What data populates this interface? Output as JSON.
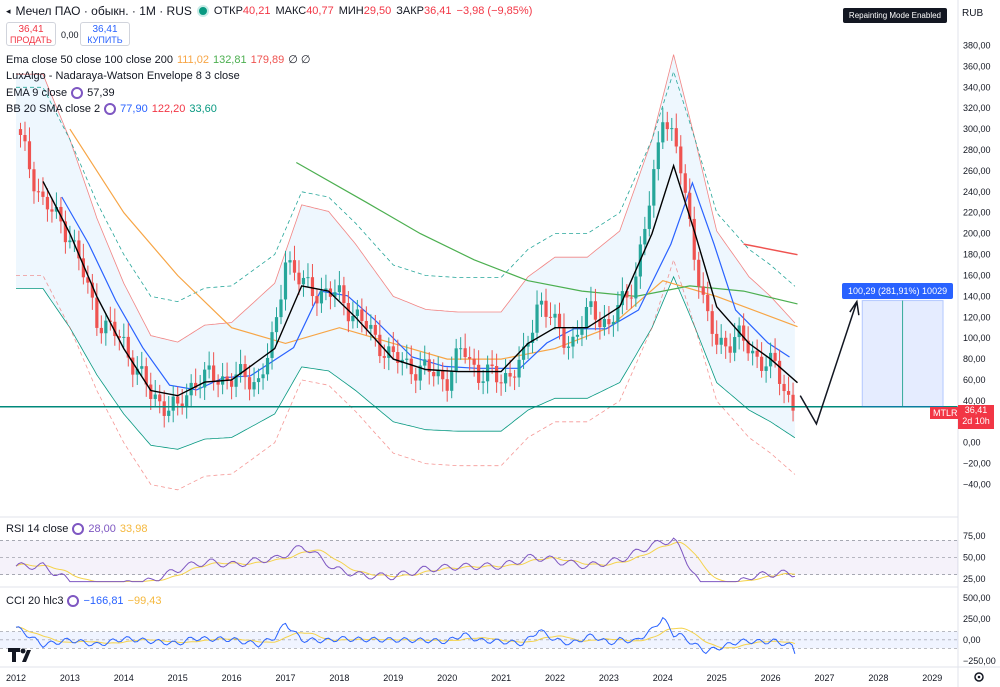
{
  "header": {
    "symbol": "Мечел ПАО · обыкн. · 1М · RUS",
    "open_label": "ОТКР",
    "open": "40,21",
    "high_label": "МАКС",
    "high": "40,77",
    "low_label": "МИН",
    "low": "29,50",
    "close_label": "ЗАКР",
    "close": "36,41",
    "change": "−3,98 (−9,85%)"
  },
  "trade": {
    "sell_price": "36,41",
    "sell_label": "ПРОДАТЬ",
    "spread": "0,00",
    "buy_price": "36,41",
    "buy_label": "КУПИТЬ"
  },
  "legends": {
    "ema": {
      "title": "Ema close 50 close 100 close 200",
      "v1": "111,02",
      "v2": "132,81",
      "v3": "179,89",
      "extra": "∅ ∅"
    },
    "luxalgo": {
      "title": "LuxAlgo - Nadaraya-Watson Envelope 8 3 close"
    },
    "ema9": {
      "title": "EMA 9 close",
      "v": "57,39"
    },
    "bb": {
      "title": "BB 20 SMA close 2",
      "v1": "77,90",
      "v2": "122,20",
      "v3": "33,60"
    },
    "rsi": {
      "title": "RSI 14 close",
      "v1": "28,00",
      "v2": "33,98"
    },
    "cci": {
      "title": "CCI 20 hlc3",
      "v1": "−166,81",
      "v2": "−99,43"
    }
  },
  "badge": "Repainting Mode Enabled",
  "currency": "RUB",
  "price_tag": {
    "ticker": "MTLR",
    "price": "36,41",
    "countdown": "2d 10h"
  },
  "projection_label": "100,29 (281,91%) 10029",
  "colors": {
    "up": "#26a69a",
    "down": "#ef5350",
    "ema50": "#f7a545",
    "ema100": "#4caf50",
    "ema200": "#ef5350",
    "bb_basis": "#2962ff",
    "bb_band": "#089981",
    "ema9": "#000000",
    "rsi": "#7e57c2",
    "cci": "#2962ff",
    "sma": "#f5d34c"
  },
  "chart_data": [
    {
      "type": "candlestick",
      "title": "Мечел ПАО · обыкн. · 1М · RUS",
      "xlabel": "",
      "ylabel": "",
      "x_ticks": [
        "2012",
        "2013",
        "2014",
        "2015",
        "2016",
        "2017",
        "2018",
        "2019",
        "2020",
        "2021",
        "2022",
        "2023",
        "2024",
        "2025",
        "2026",
        "2027",
        "2028",
        "2029"
      ],
      "y_ticks": [
        "380,00",
        "360,00",
        "340,00",
        "320,00",
        "300,00",
        "280,00",
        "260,00",
        "240,00",
        "220,00",
        "200,00",
        "180,00",
        "160,00",
        "140,00",
        "120,00",
        "100,00",
        "80,00",
        "60,00",
        "40,00",
        "20,00",
        "0,00",
        "−20,00",
        "−40,00"
      ],
      "ylim": [
        -50,
        390
      ],
      "close_path": [
        [
          2012.0,
          300
        ],
        [
          2012.5,
          230
        ],
        [
          2013.0,
          200
        ],
        [
          2013.5,
          120
        ],
        [
          2014.0,
          95
        ],
        [
          2014.5,
          45
        ],
        [
          2015.0,
          30
        ],
        [
          2015.3,
          60
        ],
        [
          2015.6,
          62
        ],
        [
          2016.0,
          62
        ],
        [
          2016.5,
          60
        ],
        [
          2016.8,
          100
        ],
        [
          2017.0,
          180
        ],
        [
          2017.3,
          150
        ],
        [
          2017.6,
          145
        ],
        [
          2018.0,
          140
        ],
        [
          2018.5,
          110
        ],
        [
          2019.0,
          80
        ],
        [
          2019.5,
          70
        ],
        [
          2020.0,
          62
        ],
        [
          2020.3,
          90
        ],
        [
          2020.6,
          65
        ],
        [
          2021.0,
          62
        ],
        [
          2021.4,
          75
        ],
        [
          2021.7,
          140
        ],
        [
          2022.0,
          110
        ],
        [
          2022.3,
          95
        ],
        [
          2022.7,
          130
        ],
        [
          2023.0,
          110
        ],
        [
          2023.5,
          160
        ],
        [
          2023.8,
          240
        ],
        [
          2024.0,
          320
        ],
        [
          2024.3,
          270
        ],
        [
          2024.6,
          180
        ],
        [
          2024.8,
          120
        ],
        [
          2025.0,
          95
        ],
        [
          2025.4,
          100
        ],
        [
          2025.8,
          80
        ],
        [
          2026.1,
          70
        ],
        [
          2026.4,
          36.41
        ]
      ],
      "series": [
        {
          "name": "EMA 9 close",
          "last": 57.39,
          "points": [
            [
              2012.5,
              250
            ],
            [
              2013.0,
              200
            ],
            [
              2013.5,
              140
            ],
            [
              2014.0,
              90
            ],
            [
              2014.5,
              50
            ],
            [
              2015.0,
              45
            ],
            [
              2015.5,
              58
            ],
            [
              2016.0,
              60
            ],
            [
              2016.8,
              90
            ],
            [
              2017.3,
              150
            ],
            [
              2017.8,
              145
            ],
            [
              2018.3,
              120
            ],
            [
              2019.0,
              80
            ],
            [
              2019.6,
              70
            ],
            [
              2020.2,
              68
            ],
            [
              2021.0,
              68
            ],
            [
              2021.5,
              95
            ],
            [
              2022.0,
              110
            ],
            [
              2022.6,
              110
            ],
            [
              2023.2,
              130
            ],
            [
              2023.8,
              200
            ],
            [
              2024.2,
              265
            ],
            [
              2024.6,
              200
            ],
            [
              2025.0,
              130
            ],
            [
              2025.6,
              95
            ],
            [
              2026.0,
              80
            ],
            [
              2026.5,
              57.39
            ]
          ]
        },
        {
          "name": "BB 20 SMA close 2",
          "basis": 77.9,
          "upper": 122.2,
          "lower": 33.6
        },
        {
          "name": "Ema close 50 close 100 close 200",
          "values": [
            111.02,
            132.81,
            179.89
          ]
        }
      ]
    },
    {
      "type": "line",
      "title": "RSI 14 close",
      "y_ticks": [
        "75,00",
        "50,00",
        "25,00"
      ],
      "ylim": [
        18,
        82
      ],
      "series": [
        {
          "name": "RSI 14 close",
          "last": 28.0
        },
        {
          "name": "",
          "last": 33.98
        }
      ]
    },
    {
      "type": "line",
      "title": "CCI 20 hlc3",
      "y_ticks": [
        "500,00",
        "250,00",
        "0,00",
        "−250,00"
      ],
      "ylim": [
        -300,
        560
      ],
      "series": [
        {
          "name": "CCI 20 hlc3",
          "last": -166.81
        },
        {
          "name": "",
          "last": -99.43
        }
      ]
    }
  ]
}
